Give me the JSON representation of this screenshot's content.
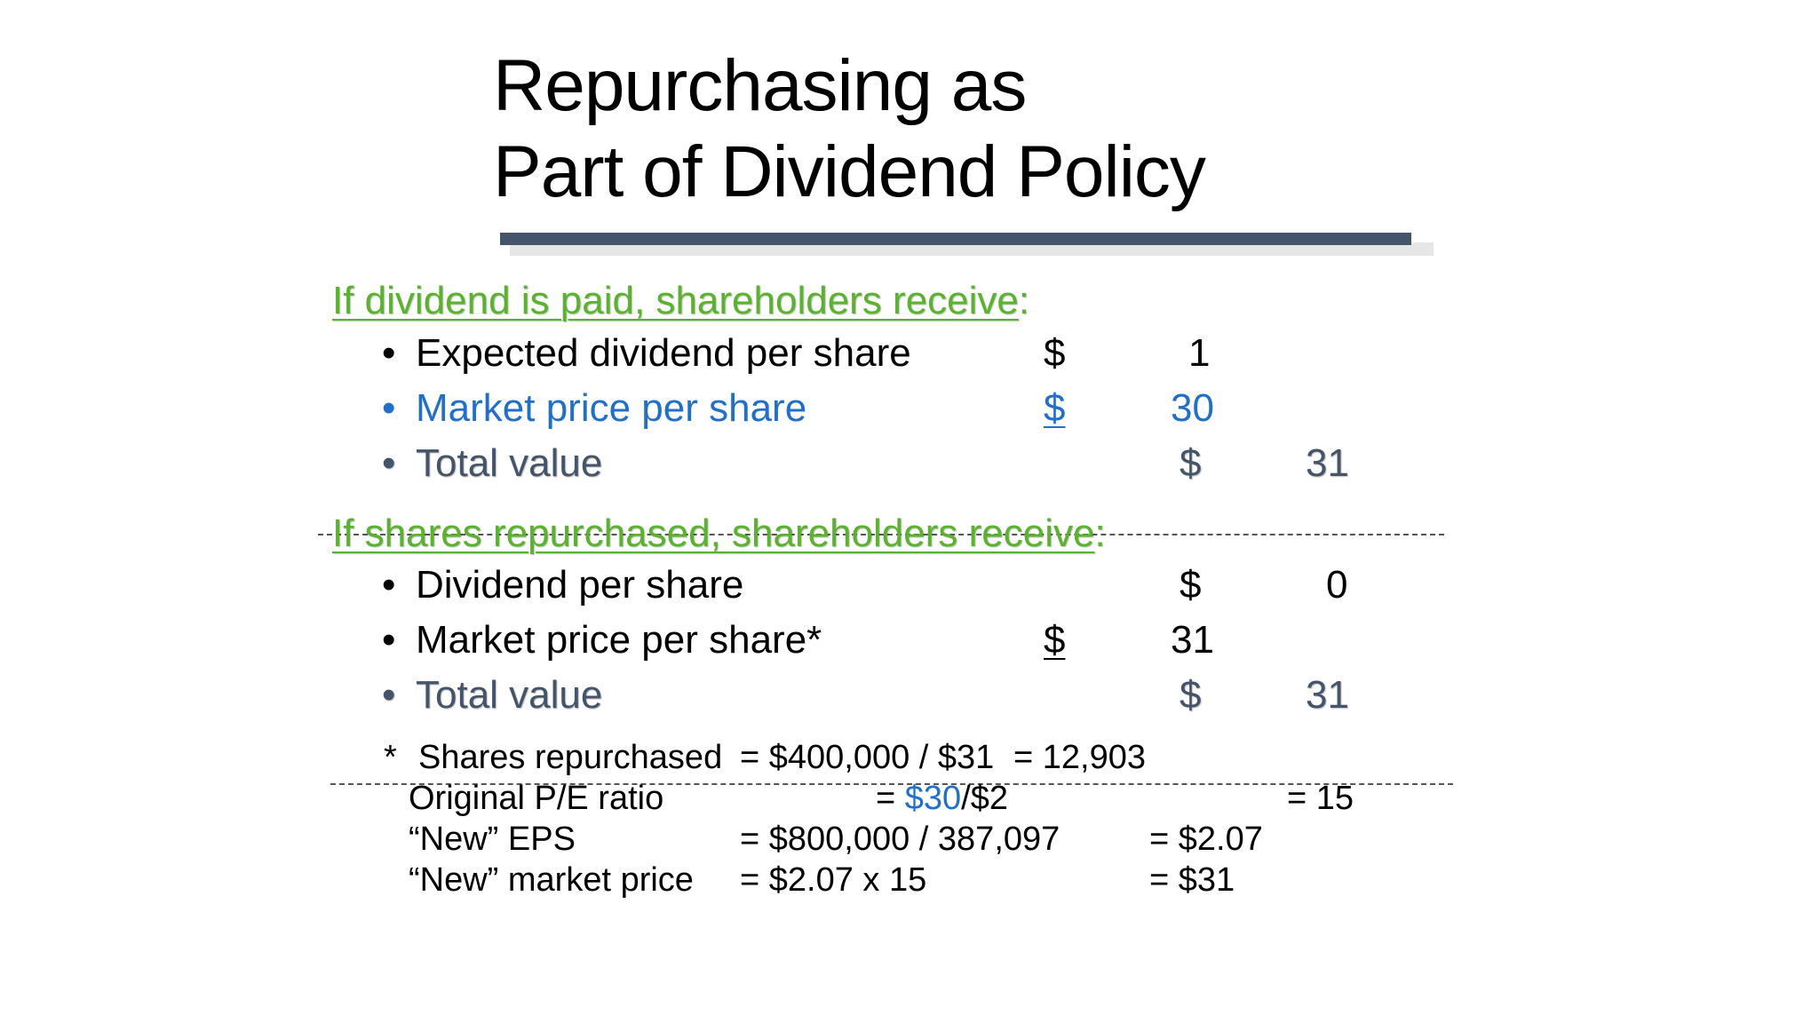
{
  "title": {
    "line1": "Repurchasing as",
    "line2": "Part of Dividend Policy"
  },
  "section1": {
    "heading": "If dividend is paid, shareholders receive",
    "colon": ":",
    "rows": [
      {
        "bullet": "•",
        "label": "Expected dividend per share",
        "currency": "$",
        "value": "1"
      },
      {
        "bullet": "•",
        "label": "Market price per share",
        "currency": "$",
        "value": "30"
      },
      {
        "bullet": "•",
        "label": "Total value",
        "currency": "$",
        "value": "31"
      }
    ]
  },
  "section2": {
    "heading": "If shares repurchased, shareholders receive",
    "colon": ":",
    "rows": [
      {
        "bullet": "•",
        "label": "Dividend per share",
        "currency": "$",
        "value": "0"
      },
      {
        "bullet": "•",
        "label": "Market price per share*",
        "currency": "$",
        "value": "31"
      },
      {
        "bullet": "•",
        "label": "Total value",
        "currency": "$",
        "value": "31"
      }
    ]
  },
  "footnote": {
    "star": "*",
    "shares_label": "Shares repurchased",
    "shares_formula": "= $400,000 / $31",
    "shares_result": "= 12,903",
    "pe_label": "Original P/E ratio",
    "pe_eq": "=",
    "pe_highlight": "$30",
    "pe_rest": "/$2",
    "pe_result": "= 15",
    "eps_label": "“New” EPS",
    "eps_formula": "= $800,000 / 387,097",
    "eps_result": "= $2.07",
    "price_label": "“New” market price",
    "price_formula": "= $2.07 x 15",
    "price_result": "= $31"
  },
  "colors": {
    "heading_green": "#59b32c",
    "blue": "#1f6fcf",
    "slate": "#44546a",
    "rule": "#44546a"
  }
}
